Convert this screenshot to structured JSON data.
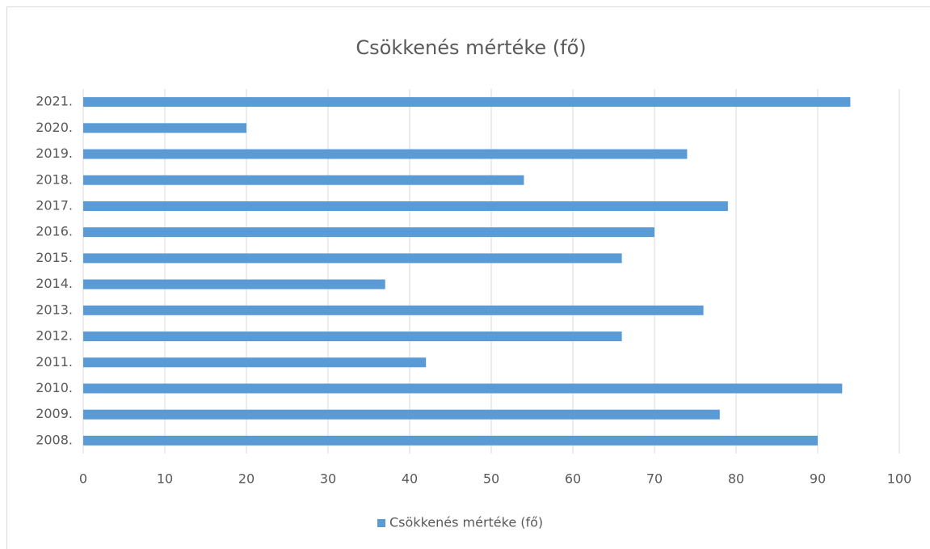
{
  "chart_data": {
    "type": "bar",
    "orientation": "horizontal",
    "title": "Csökkenés mértéke (fő)",
    "categories": [
      "2008.",
      "2009.",
      "2010.",
      "2011.",
      "2012.",
      "2013.",
      "2014.",
      "2015.",
      "2016.",
      "2017.",
      "2018.",
      "2019.",
      "2020.",
      "2021."
    ],
    "series": [
      {
        "name": "Csökkenés mértéke (fő)",
        "color": "#5b9bd5",
        "values": [
          90,
          78,
          93,
          42,
          66,
          76,
          37,
          66,
          70,
          79,
          54,
          74,
          20,
          94
        ]
      }
    ],
    "xlim": [
      0,
      100
    ],
    "xticks": [
      0,
      10,
      20,
      30,
      40,
      50,
      60,
      70,
      80,
      90,
      100
    ],
    "grid": true,
    "legend": "bottom"
  }
}
